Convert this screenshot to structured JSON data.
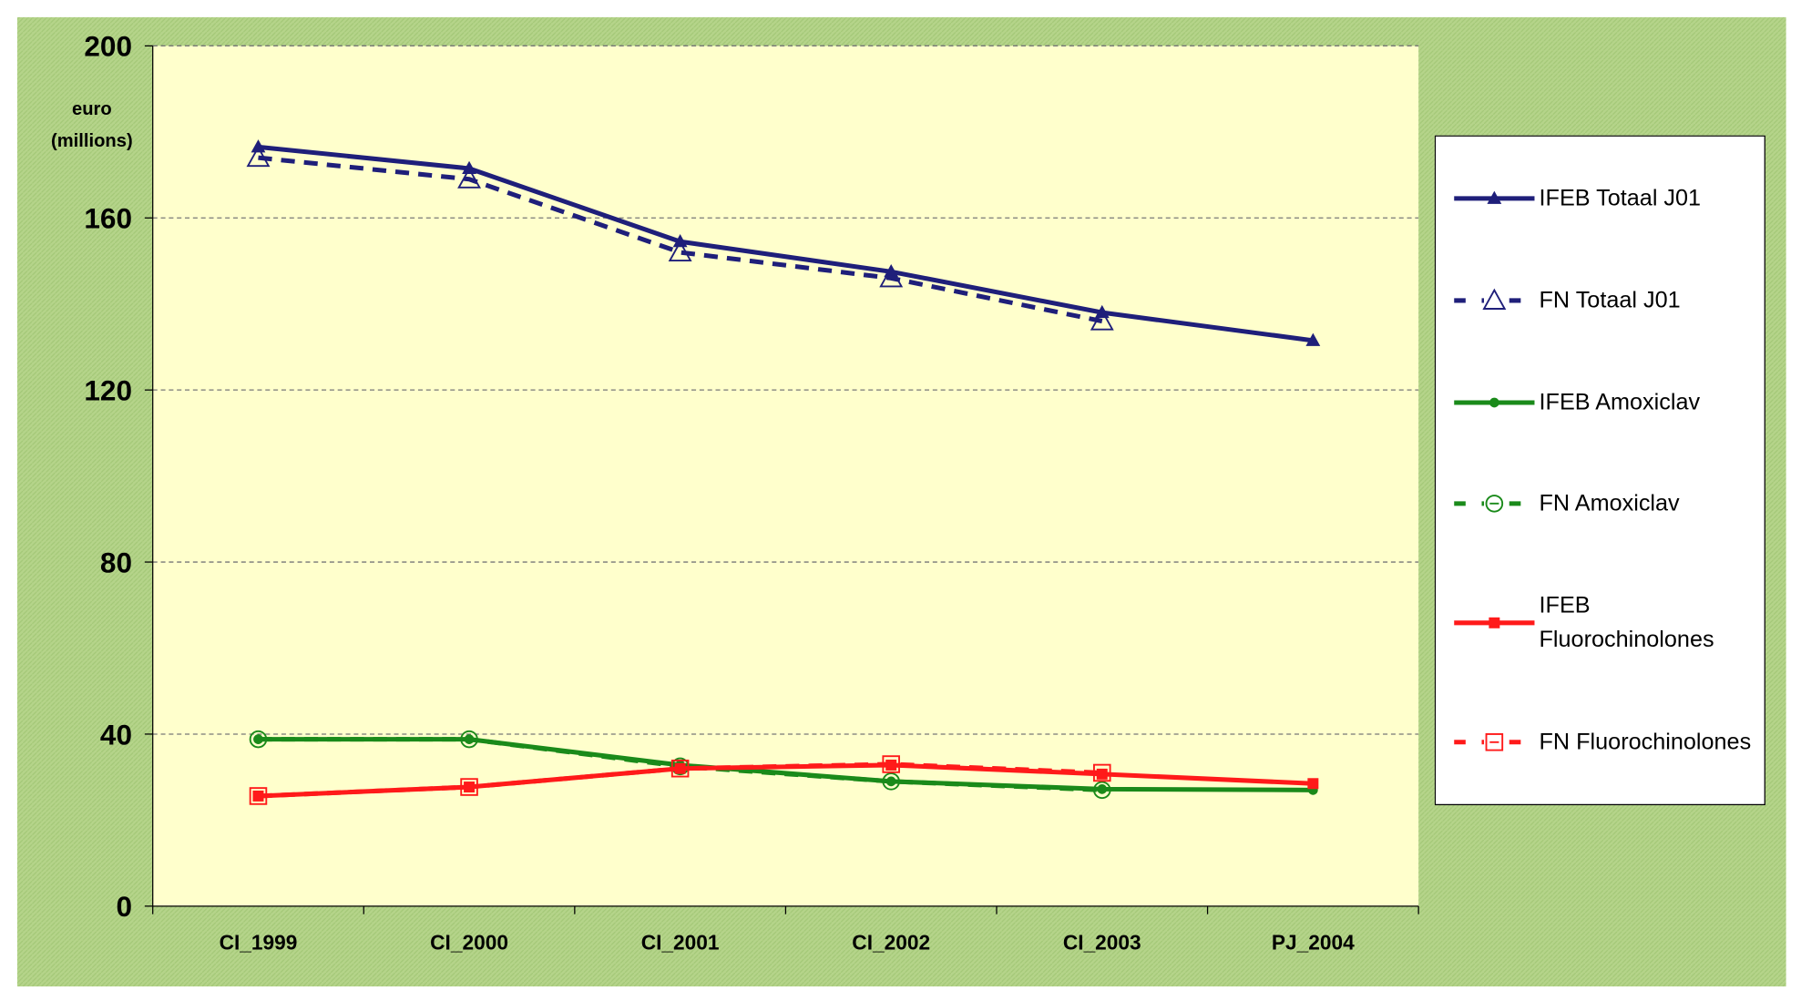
{
  "chart_data": {
    "type": "line",
    "ylabel_lines": [
      "euro",
      "(millions)"
    ],
    "categories": [
      "CI_1999",
      "CI_2000",
      "CI_2001",
      "CI_2002",
      "CI_2003",
      "PJ_2004"
    ],
    "ylim": [
      0,
      200
    ],
    "yticks": [
      0,
      40,
      80,
      120,
      160,
      200
    ],
    "grid": true,
    "series": [
      {
        "name": "IFEB Totaal J01",
        "color": "#1f1f7a",
        "marker": "triangle",
        "filled": true,
        "dashed": false,
        "values": [
          176.5,
          171.5,
          154.5,
          147.5,
          138,
          131.5
        ]
      },
      {
        "name": "FN Totaal J01",
        "color": "#1f1f7a",
        "marker": "triangle",
        "filled": false,
        "dashed": true,
        "values": [
          174,
          169,
          152,
          146,
          136,
          null
        ]
      },
      {
        "name": "IFEB Amoxiclav",
        "color": "#1a8a1a",
        "marker": "circle",
        "filled": true,
        "dashed": false,
        "values": [
          38.8,
          38.8,
          32.8,
          29,
          27.2,
          27
        ]
      },
      {
        "name": "FN Amoxiclav",
        "color": "#1a8a1a",
        "marker": "circle",
        "filled": false,
        "dashed": true,
        "values": [
          38.8,
          38.8,
          32.5,
          29,
          27,
          null
        ]
      },
      {
        "name": "IFEB Fluorochinolones",
        "color": "#ff1a1a",
        "marker": "square",
        "filled": true,
        "dashed": false,
        "values": [
          25.6,
          27.7,
          32,
          32.8,
          30.7,
          28.5
        ]
      },
      {
        "name": "FN Fluorochinolones",
        "color": "#ff1a1a",
        "marker": "square",
        "filled": false,
        "dashed": true,
        "values": [
          25.6,
          27.7,
          32,
          33,
          31,
          null
        ]
      }
    ]
  }
}
